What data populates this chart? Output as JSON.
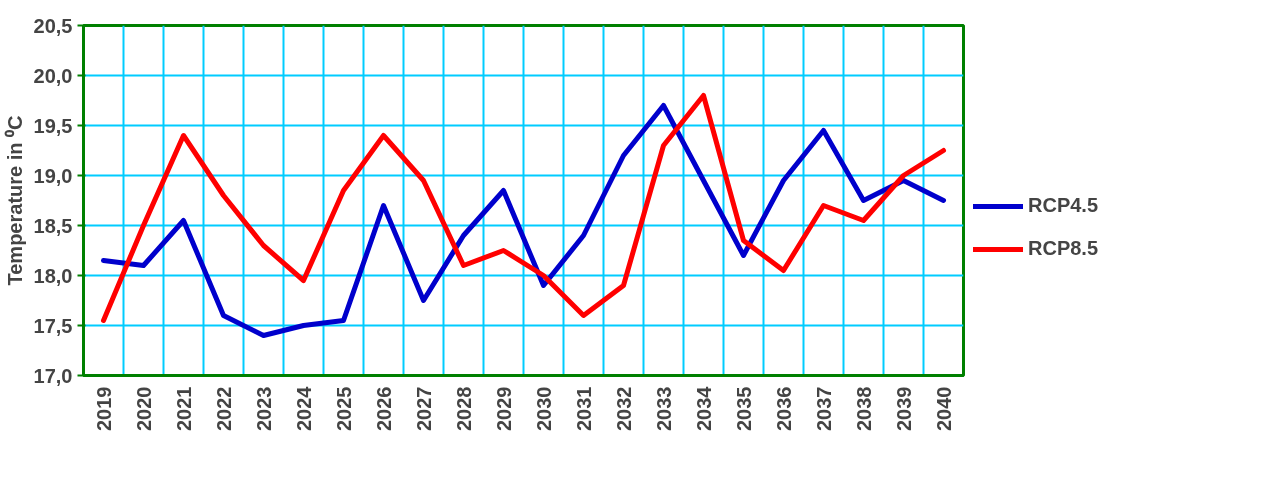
{
  "chart_data": {
    "type": "line",
    "ylabel": "Temperature in ⁰C",
    "categories": [
      "2019",
      "2020",
      "2021",
      "2022",
      "2023",
      "2024",
      "2025",
      "2026",
      "2027",
      "2028",
      "2029",
      "2030",
      "2031",
      "2032",
      "2033",
      "2034",
      "2035",
      "2036",
      "2037",
      "2038",
      "2039",
      "2040"
    ],
    "series": [
      {
        "name": "RCP4.5",
        "color": "#0000cc",
        "values": [
          18.15,
          18.1,
          18.55,
          17.6,
          17.4,
          17.5,
          17.55,
          18.7,
          17.75,
          18.4,
          18.85,
          17.9,
          18.4,
          19.2,
          19.7,
          18.95,
          18.2,
          18.95,
          19.45,
          18.75,
          18.95,
          18.75
        ]
      },
      {
        "name": "RCP8.5",
        "color": "#ff0000",
        "values": [
          17.55,
          18.5,
          19.4,
          18.8,
          18.3,
          17.95,
          18.85,
          19.4,
          18.95,
          18.1,
          18.25,
          18.0,
          17.6,
          17.9,
          19.3,
          19.8,
          18.35,
          18.05,
          18.7,
          18.55,
          19.0,
          19.25
        ]
      }
    ],
    "ylim": [
      17.0,
      20.5
    ],
    "yticks": [
      {
        "value": 17.0,
        "label": "17,0"
      },
      {
        "value": 17.5,
        "label": "17,5"
      },
      {
        "value": 18.0,
        "label": "18,0"
      },
      {
        "value": 18.5,
        "label": "18,5"
      },
      {
        "value": 19.0,
        "label": "19,0"
      },
      {
        "value": 19.5,
        "label": "19,5"
      },
      {
        "value": 20.0,
        "label": "20,0"
      },
      {
        "value": 20.5,
        "label": "20,5"
      }
    ],
    "grid": true,
    "legend": "right",
    "marker": "none",
    "line_style": "solid"
  }
}
